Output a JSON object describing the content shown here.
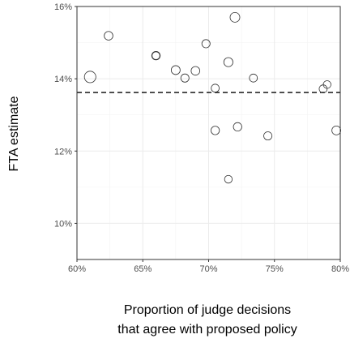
{
  "chart_data": {
    "type": "scatter",
    "xlabel_lines": [
      "Proportion of judge decisions",
      "that agree with proposed policy"
    ],
    "ylabel": "FTA estimate",
    "xlim": [
      0.6,
      0.8
    ],
    "ylim": [
      0.09,
      0.16
    ],
    "x_ticks": [
      0.6,
      0.65,
      0.7,
      0.75,
      0.8
    ],
    "x_tick_labels": [
      "60%",
      "65%",
      "70%",
      "75%",
      "80%"
    ],
    "y_ticks": [
      0.1,
      0.12,
      0.14,
      0.16
    ],
    "y_tick_labels": [
      "10%",
      "12%",
      "14%",
      "16%"
    ],
    "grid": true,
    "reference_line": {
      "y": 0.1362,
      "style": "dashed"
    },
    "points": [
      {
        "x": 0.61,
        "y": 0.1405,
        "size": 3.0
      },
      {
        "x": 0.624,
        "y": 0.1519,
        "size": 1.5
      },
      {
        "x": 0.66,
        "y": 0.1464,
        "size": 1.4
      },
      {
        "x": 0.66,
        "y": 0.1464,
        "size": 1.1
      },
      {
        "x": 0.675,
        "y": 0.1424,
        "size": 1.6
      },
      {
        "x": 0.682,
        "y": 0.1402,
        "size": 1.3
      },
      {
        "x": 0.69,
        "y": 0.1422,
        "size": 1.5
      },
      {
        "x": 0.698,
        "y": 0.1497,
        "size": 1.3
      },
      {
        "x": 0.705,
        "y": 0.1374,
        "size": 1.2
      },
      {
        "x": 0.705,
        "y": 0.1257,
        "size": 1.4
      },
      {
        "x": 0.715,
        "y": 0.1446,
        "size": 1.7
      },
      {
        "x": 0.715,
        "y": 0.1122,
        "size": 1.1
      },
      {
        "x": 0.72,
        "y": 0.157,
        "size": 2.0
      },
      {
        "x": 0.722,
        "y": 0.1267,
        "size": 1.4
      },
      {
        "x": 0.734,
        "y": 0.1402,
        "size": 1.2
      },
      {
        "x": 0.745,
        "y": 0.1242,
        "size": 1.3
      },
      {
        "x": 0.787,
        "y": 0.1372,
        "size": 1.2
      },
      {
        "x": 0.79,
        "y": 0.1384,
        "size": 1.1
      },
      {
        "x": 0.797,
        "y": 0.1257,
        "size": 1.6
      }
    ]
  }
}
